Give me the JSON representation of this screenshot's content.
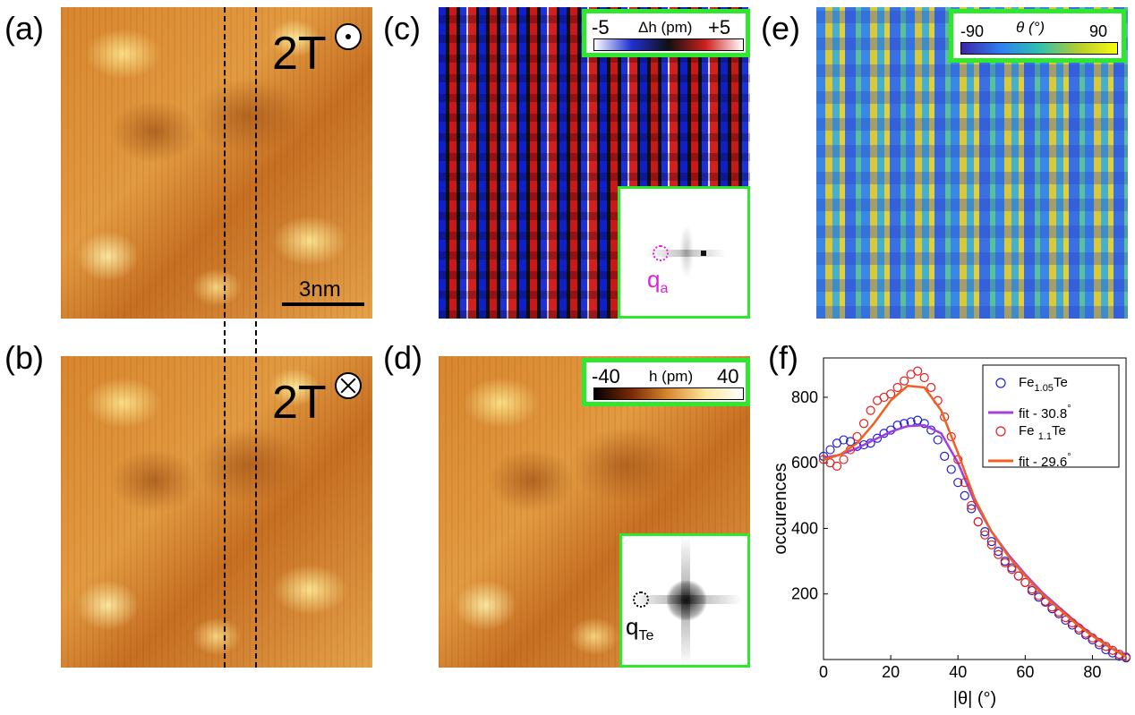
{
  "panels": {
    "a": {
      "label": "(a)",
      "field": "2T"
    },
    "b": {
      "label": "(b)",
      "field": "2T"
    },
    "c": {
      "label": "(c)",
      "q_label": "q",
      "q_sub": "a"
    },
    "d": {
      "label": "(d)",
      "q_label": "q",
      "q_sub": "Te"
    },
    "e": {
      "label": "(e)"
    },
    "f": {
      "label": "(f)"
    }
  },
  "scalebar": {
    "label": "3nm"
  },
  "colorbars": {
    "c": {
      "min": "-5",
      "max": "+5",
      "title": "Δh (pm)",
      "colors": [
        "#ffffff",
        "#2030d0",
        "#101010",
        "#d02020",
        "#ffffff"
      ]
    },
    "d": {
      "min": "-40",
      "max": "40",
      "title": "h (pm)",
      "colors": [
        "#000000",
        "#7a2a05",
        "#d98a30",
        "#ffe7a0",
        "#ffffff"
      ]
    },
    "e": {
      "min": "-90",
      "max": "90",
      "title": "θ (°)",
      "colors": [
        "#3d26a8",
        "#2f7ff0",
        "#2ec0b0",
        "#b5cc30",
        "#f9fb0e"
      ]
    }
  },
  "chart_data": {
    "type": "scatter",
    "xlabel": "|θ| (°)",
    "ylabel": "occurences",
    "xlim": [
      0,
      90
    ],
    "ylim": [
      0,
      920
    ],
    "xticks": [
      "0",
      "20",
      "40",
      "60",
      "80"
    ],
    "yticks": [
      "200",
      "400",
      "600",
      "800"
    ],
    "legend_position": "top-right",
    "legend": [
      {
        "marker": "circle",
        "name": "Fe",
        "sub": "1.05",
        "suffix": "Te"
      },
      {
        "marker": "line",
        "name": "fit - 30.8",
        "sup": "°"
      },
      {
        "marker": "circle",
        "name": "Fe ",
        "sub": "1.1",
        "suffix": "Te"
      },
      {
        "marker": "line",
        "name": "fit - 29.6",
        "sup": "°"
      }
    ],
    "series": [
      {
        "name": "Fe1.05Te",
        "color": "#2020d0",
        "marker": "circle",
        "x": [
          0,
          2,
          4,
          6,
          8,
          10,
          12,
          14,
          16,
          18,
          20,
          22,
          24,
          26,
          28,
          30,
          32,
          34,
          36,
          38,
          40,
          42,
          44,
          46,
          48,
          50,
          52,
          54,
          56,
          58,
          60,
          62,
          64,
          66,
          68,
          70,
          72,
          74,
          76,
          78,
          80,
          82,
          84,
          86,
          88,
          90
        ],
        "y": [
          620,
          640,
          660,
          670,
          665,
          650,
          655,
          660,
          675,
          690,
          700,
          715,
          720,
          725,
          730,
          720,
          700,
          670,
          620,
          580,
          540,
          500,
          460,
          420,
          390,
          360,
          330,
          300,
          280,
          255,
          235,
          210,
          190,
          175,
          155,
          140,
          120,
          105,
          90,
          75,
          60,
          45,
          30,
          20,
          10,
          5
        ]
      },
      {
        "name": "fit - 30.8°",
        "color": "#a040e0",
        "type": "line",
        "x": [
          0,
          5,
          10,
          15,
          20,
          25,
          30,
          35,
          40,
          45,
          50,
          55,
          60,
          65,
          70,
          75,
          80,
          85,
          90
        ],
        "y": [
          615,
          625,
          645,
          670,
          695,
          712,
          715,
          690,
          600,
          480,
          390,
          320,
          260,
          205,
          160,
          115,
          75,
          40,
          10
        ]
      },
      {
        "name": "Fe1.1Te",
        "color": "#e02020",
        "marker": "circle",
        "x": [
          0,
          2,
          4,
          6,
          8,
          10,
          12,
          14,
          16,
          18,
          20,
          22,
          24,
          26,
          28,
          30,
          32,
          34,
          36,
          38,
          40,
          42,
          44,
          46,
          48,
          50,
          52,
          54,
          56,
          58,
          60,
          62,
          64,
          66,
          68,
          70,
          72,
          74,
          76,
          78,
          80,
          82,
          84,
          86,
          88,
          90
        ],
        "y": [
          610,
          600,
          590,
          610,
          640,
          680,
          720,
          760,
          790,
          800,
          810,
          830,
          850,
          870,
          880,
          860,
          830,
          790,
          740,
          680,
          610,
          540,
          470,
          420,
          380,
          350,
          320,
          295,
          275,
          255,
          235,
          215,
          195,
          178,
          160,
          145,
          128,
          112,
          96,
          80,
          66,
          52,
          40,
          28,
          16,
          8
        ]
      },
      {
        "name": "fit - 29.6°",
        "color": "#f06020",
        "type": "line",
        "x": [
          0,
          5,
          10,
          15,
          20,
          25,
          30,
          35,
          40,
          45,
          50,
          55,
          60,
          65,
          70,
          75,
          80,
          85,
          90
        ],
        "y": [
          610,
          625,
          660,
          720,
          790,
          835,
          830,
          760,
          630,
          490,
          390,
          315,
          255,
          200,
          155,
          110,
          72,
          38,
          8
        ]
      }
    ]
  }
}
